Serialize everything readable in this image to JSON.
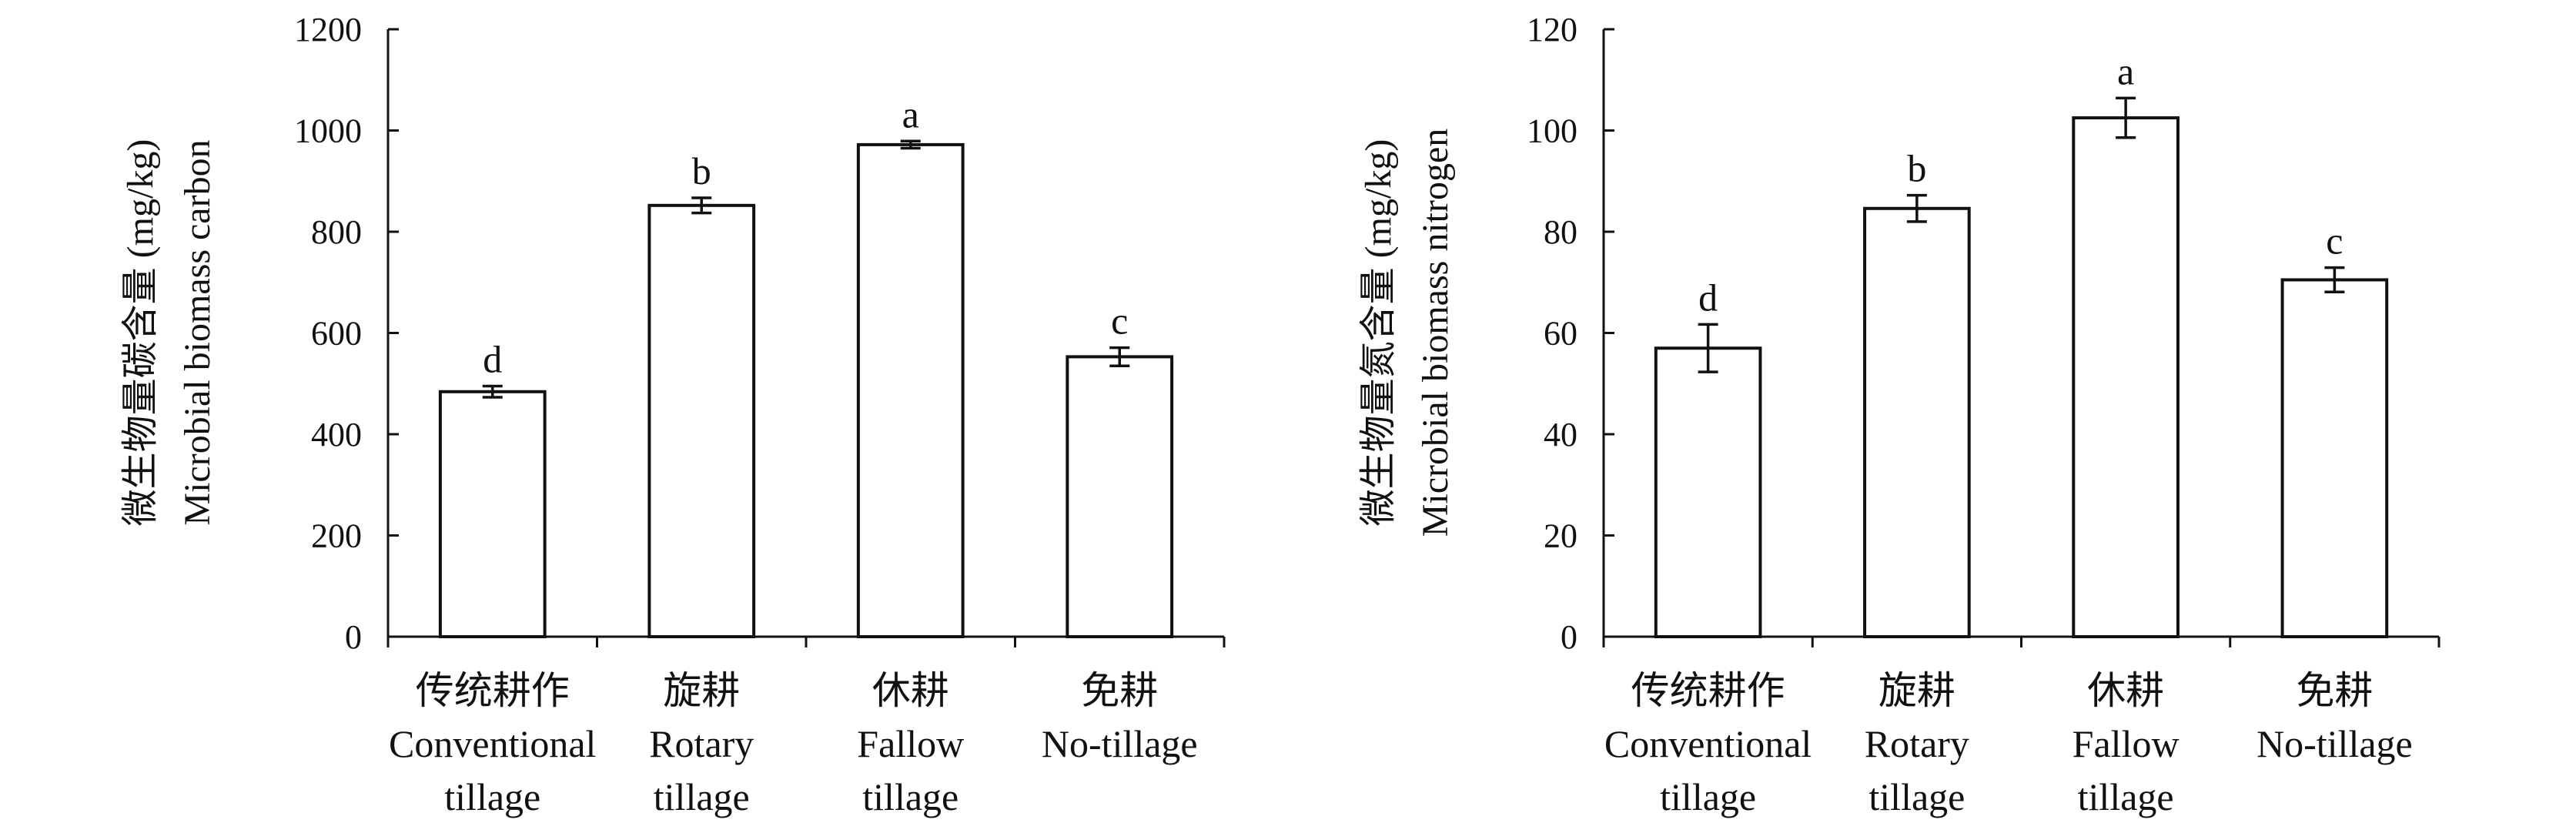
{
  "chart_data": [
    {
      "type": "bar",
      "categories": [
        [
          "传统耕作",
          "Conventional",
          "tillage"
        ],
        [
          "旋耕",
          "Rotary",
          "tillage"
        ],
        [
          "休耕",
          "Fallow",
          "tillage"
        ],
        [
          "免耕",
          "No-tillage"
        ]
      ],
      "values": [
        484,
        852,
        972,
        553
      ],
      "errors": [
        11,
        15,
        7,
        18
      ],
      "significance": [
        "d",
        "b",
        "a",
        "c"
      ],
      "ylabel": [
        "微生物量碳含量 (mg/kg)",
        "Microbial biomass carbon"
      ],
      "ylim": [
        0,
        1200
      ],
      "yticks": [
        0,
        200,
        400,
        600,
        800,
        1000,
        1200
      ],
      "grid": false
    },
    {
      "type": "bar",
      "categories": [
        [
          "传统耕作",
          "Conventional",
          "tillage"
        ],
        [
          "旋耕",
          "Rotary",
          "tillage"
        ],
        [
          "休耕",
          "Fallow",
          "tillage"
        ],
        [
          "免耕",
          "No-tillage"
        ]
      ],
      "values": [
        57,
        84.6,
        102.5,
        70.5
      ],
      "errors": [
        4.7,
        2.6,
        3.9,
        2.4
      ],
      "significance": [
        "d",
        "b",
        "a",
        "c"
      ],
      "ylabel": [
        "微生物量氮含量 (mg/kg)",
        "Microbial biomass nitrogen"
      ],
      "ylim": [
        0,
        120
      ],
      "yticks": [
        0,
        20,
        40,
        60,
        80,
        100,
        120
      ],
      "grid": false
    }
  ]
}
